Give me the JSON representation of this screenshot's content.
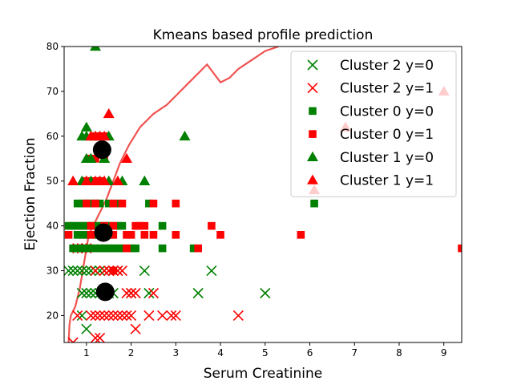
{
  "chart_data": {
    "type": "scatter",
    "title": "Kmeans based profile prediction",
    "xlabel": "Serum Creatinine",
    "ylabel": "Ejection Fraction",
    "xlim": [
      0.5,
      9.4
    ],
    "ylim": [
      14,
      80
    ],
    "xticks": [
      1,
      2,
      3,
      4,
      5,
      6,
      7,
      8,
      9
    ],
    "yticks": [
      20,
      30,
      40,
      50,
      60,
      70,
      80
    ],
    "grid": false,
    "legend_position": "top-right",
    "colors": {
      "y0": "#008000",
      "y1": "#ff0000",
      "boundary": "#ef5350",
      "centroid": "#000000"
    },
    "series": [
      {
        "name": "Cluster 2 y=0",
        "marker": "x",
        "color": "#008000",
        "points": [
          [
            0.6,
            30
          ],
          [
            0.7,
            30
          ],
          [
            0.8,
            30
          ],
          [
            0.9,
            30
          ],
          [
            1.0,
            30
          ],
          [
            1.1,
            30
          ],
          [
            1.2,
            30
          ],
          [
            1.3,
            30
          ],
          [
            1.4,
            30
          ],
          [
            1.5,
            30
          ],
          [
            1.6,
            30
          ],
          [
            1.7,
            30
          ],
          [
            2.3,
            30
          ],
          [
            3.8,
            30
          ],
          [
            0.9,
            25
          ],
          [
            1.0,
            25
          ],
          [
            1.1,
            25
          ],
          [
            1.2,
            25
          ],
          [
            1.3,
            25
          ],
          [
            1.4,
            25
          ],
          [
            1.5,
            25
          ],
          [
            1.6,
            25
          ],
          [
            2.0,
            25
          ],
          [
            2.4,
            25
          ],
          [
            3.5,
            25
          ],
          [
            5.0,
            25
          ],
          [
            0.9,
            20
          ],
          [
            1.0,
            17
          ]
        ]
      },
      {
        "name": "Cluster 2 y=1",
        "marker": "x",
        "color": "#ff0000",
        "points": [
          [
            0.8,
            35
          ],
          [
            0.9,
            35
          ],
          [
            1.0,
            35
          ],
          [
            1.2,
            30
          ],
          [
            1.4,
            30
          ],
          [
            1.5,
            30
          ],
          [
            1.6,
            30
          ],
          [
            1.7,
            30
          ],
          [
            1.8,
            30
          ],
          [
            1.9,
            25
          ],
          [
            2.0,
            25
          ],
          [
            2.1,
            25
          ],
          [
            2.5,
            25
          ],
          [
            0.8,
            20
          ],
          [
            1.1,
            20
          ],
          [
            1.2,
            20
          ],
          [
            1.3,
            20
          ],
          [
            1.4,
            20
          ],
          [
            1.5,
            20
          ],
          [
            1.6,
            20
          ],
          [
            1.7,
            20
          ],
          [
            1.8,
            20
          ],
          [
            1.9,
            20
          ],
          [
            2.0,
            20
          ],
          [
            2.4,
            20
          ],
          [
            2.7,
            20
          ],
          [
            2.9,
            20
          ],
          [
            3.0,
            20
          ],
          [
            4.4,
            20
          ],
          [
            2.1,
            17
          ],
          [
            1.2,
            15
          ],
          [
            1.3,
            15
          ],
          [
            0.7,
            14
          ]
        ]
      },
      {
        "name": "Cluster 0 y=0",
        "marker": "s",
        "color": "#008000",
        "points": [
          [
            0.8,
            45
          ],
          [
            0.9,
            45
          ],
          [
            1.0,
            45
          ],
          [
            1.1,
            45
          ],
          [
            1.2,
            45
          ],
          [
            1.3,
            45
          ],
          [
            1.5,
            45
          ],
          [
            1.7,
            45
          ],
          [
            2.4,
            45
          ],
          [
            6.1,
            45
          ],
          [
            0.6,
            40
          ],
          [
            0.7,
            40
          ],
          [
            0.8,
            40
          ],
          [
            0.9,
            40
          ],
          [
            1.0,
            40
          ],
          [
            1.1,
            40
          ],
          [
            1.2,
            40
          ],
          [
            1.3,
            40
          ],
          [
            1.4,
            40
          ],
          [
            1.5,
            40
          ],
          [
            1.7,
            40
          ],
          [
            1.8,
            40
          ],
          [
            2.7,
            40
          ],
          [
            0.8,
            38
          ],
          [
            0.9,
            38
          ],
          [
            1.0,
            38
          ],
          [
            1.2,
            38
          ],
          [
            1.3,
            38
          ],
          [
            1.5,
            38
          ],
          [
            0.7,
            35
          ],
          [
            0.8,
            35
          ],
          [
            0.9,
            35
          ],
          [
            1.0,
            35
          ],
          [
            1.1,
            35
          ],
          [
            1.2,
            35
          ],
          [
            1.3,
            35
          ],
          [
            1.4,
            35
          ],
          [
            1.5,
            35
          ],
          [
            1.6,
            35
          ],
          [
            1.7,
            35
          ],
          [
            1.8,
            35
          ],
          [
            2.0,
            35
          ],
          [
            2.1,
            35
          ],
          [
            2.7,
            35
          ],
          [
            3.4,
            35
          ],
          [
            1.0,
            50
          ],
          [
            1.3,
            50
          ]
        ]
      },
      {
        "name": "Cluster 0 y=1",
        "marker": "s",
        "color": "#ff0000",
        "points": [
          [
            1.2,
            60
          ],
          [
            1.3,
            60
          ],
          [
            1.4,
            60
          ],
          [
            1.1,
            55
          ],
          [
            1.2,
            55
          ],
          [
            1.4,
            55
          ],
          [
            1.3,
            50
          ],
          [
            1.0,
            45
          ],
          [
            1.2,
            45
          ],
          [
            1.6,
            45
          ],
          [
            1.8,
            45
          ],
          [
            2.5,
            45
          ],
          [
            3.0,
            45
          ],
          [
            1.1,
            40
          ],
          [
            1.4,
            40
          ],
          [
            1.6,
            40
          ],
          [
            2.1,
            40
          ],
          [
            2.2,
            40
          ],
          [
            2.3,
            40
          ],
          [
            3.8,
            40
          ],
          [
            0.6,
            38
          ],
          [
            1.1,
            38
          ],
          [
            1.4,
            38
          ],
          [
            1.6,
            38
          ],
          [
            1.9,
            38
          ],
          [
            2.0,
            38
          ],
          [
            2.3,
            38
          ],
          [
            2.5,
            38
          ],
          [
            3.0,
            38
          ],
          [
            4.0,
            38
          ],
          [
            5.8,
            38
          ],
          [
            1.9,
            35
          ],
          [
            3.5,
            35
          ],
          [
            9.4,
            35
          ],
          [
            1.6,
            30
          ],
          [
            1.2,
            50
          ],
          [
            1.0,
            50
          ]
        ]
      },
      {
        "name": "Cluster 1 y=0",
        "marker": "^",
        "color": "#008000",
        "points": [
          [
            1.2,
            80
          ],
          [
            1.0,
            62
          ],
          [
            0.9,
            60
          ],
          [
            1.0,
            60
          ],
          [
            1.1,
            60
          ],
          [
            1.2,
            60
          ],
          [
            1.3,
            60
          ],
          [
            1.5,
            60
          ],
          [
            3.2,
            60
          ],
          [
            1.0,
            55
          ],
          [
            1.1,
            55
          ],
          [
            1.4,
            55
          ],
          [
            0.9,
            50
          ],
          [
            1.0,
            50
          ],
          [
            1.1,
            50
          ],
          [
            1.3,
            50
          ],
          [
            1.5,
            50
          ],
          [
            1.8,
            50
          ],
          [
            2.3,
            50
          ]
        ]
      },
      {
        "name": "Cluster 1 y=1",
        "marker": "^",
        "color": "#ff0000",
        "points": [
          [
            1.5,
            65
          ],
          [
            6.8,
            62
          ],
          [
            1.1,
            60
          ],
          [
            1.2,
            60
          ],
          [
            1.3,
            60
          ],
          [
            1.4,
            60
          ],
          [
            1.9,
            55
          ],
          [
            0.7,
            50
          ],
          [
            1.0,
            50
          ],
          [
            1.2,
            50
          ],
          [
            1.3,
            50
          ],
          [
            1.4,
            50
          ],
          [
            1.7,
            50
          ],
          [
            9.0,
            70
          ],
          [
            6.1,
            48
          ]
        ]
      }
    ],
    "centroids": [
      [
        1.35,
        57
      ],
      [
        1.38,
        38.5
      ],
      [
        1.42,
        25.3
      ]
    ],
    "boundary": [
      [
        0.6,
        14
      ],
      [
        0.62,
        18
      ],
      [
        0.65,
        20
      ],
      [
        0.75,
        22
      ],
      [
        0.85,
        26
      ],
      [
        0.95,
        32
      ],
      [
        1.05,
        38
      ],
      [
        1.25,
        42
      ],
      [
        1.45,
        46
      ],
      [
        1.6,
        50
      ],
      [
        1.75,
        54
      ],
      [
        1.95,
        58
      ],
      [
        2.2,
        62
      ],
      [
        2.5,
        65
      ],
      [
        2.8,
        67
      ],
      [
        3.1,
        70
      ],
      [
        3.3,
        72
      ],
      [
        3.5,
        74
      ],
      [
        3.7,
        76
      ],
      [
        4.0,
        72
      ],
      [
        4.2,
        73
      ],
      [
        4.4,
        75
      ],
      [
        4.7,
        77
      ],
      [
        5.0,
        79
      ],
      [
        5.3,
        80
      ]
    ]
  }
}
